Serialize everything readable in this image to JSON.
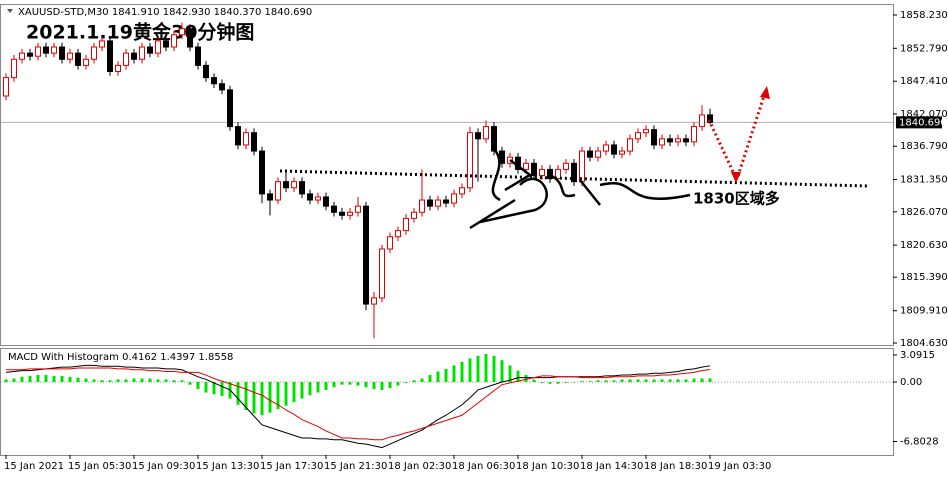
{
  "chart_data": [
    {
      "type": "candlestick",
      "header": "XAUUSD-STD,M30 1841.910 1842.930 1840.370 1840.690",
      "title": "2021.1.19黄金30分钟图",
      "annotation": "1830区域多",
      "bull_color": "#e00000",
      "bear_color": "#000000",
      "xticks": [
        {
          "value": 0,
          "label": "15 Jan 2021"
        },
        {
          "value": 8,
          "label": "15 Jan 05:30"
        },
        {
          "value": 16,
          "label": "15 Jan 09:30"
        },
        {
          "value": 24,
          "label": "15 Jan 13:30"
        },
        {
          "value": 32,
          "label": "15 Jan 17:30"
        },
        {
          "value": 40,
          "label": "15 Jan 21:30"
        },
        {
          "value": 48,
          "label": "18 Jan 02:30"
        },
        {
          "value": 56,
          "label": "18 Jan 06:30"
        },
        {
          "value": 64,
          "label": "18 Jan 10:30"
        },
        {
          "value": 72,
          "label": "18 Jan 14:30"
        },
        {
          "value": 80,
          "label": "18 Jan 18:30"
        },
        {
          "value": 88,
          "label": "19 Jan 03:30"
        }
      ],
      "ylim": [
        1804.31,
        1860.03
      ],
      "yticks": [
        {
          "value": 1858.23,
          "label": "1858.230"
        },
        {
          "value": 1852.79,
          "label": "1852.790"
        },
        {
          "value": 1847.41,
          "label": "1847.410"
        },
        {
          "value": 1842.07,
          "label": "1842.070"
        },
        {
          "value": 1836.79,
          "label": "1836.790"
        },
        {
          "value": 1831.35,
          "label": "1831.350"
        },
        {
          "value": 1826.07,
          "label": "1826.070"
        },
        {
          "value": 1820.63,
          "label": "1820.630"
        },
        {
          "value": 1815.39,
          "label": "1815.390"
        },
        {
          "value": 1809.91,
          "label": "1809.910"
        },
        {
          "value": 1804.63,
          "label": "1804.630"
        }
      ],
      "last_price": {
        "value": 1840.69,
        "label": "1840.690"
      },
      "open": [
        1845,
        1848,
        1851,
        1852,
        1851.5,
        1853,
        1852,
        1853,
        1851,
        1852,
        1850,
        1851,
        1853,
        1854,
        1849,
        1850,
        1852,
        1851,
        1853,
        1852,
        1854,
        1853,
        1855,
        1856,
        1853,
        1850,
        1848,
        1847,
        1846,
        1840,
        1837,
        1839,
        1836,
        1829,
        1828,
        1831,
        1830,
        1831,
        1829,
        1828,
        1828.5,
        1827,
        1826,
        1825.5,
        1826,
        1827,
        1811,
        1812,
        1820,
        1822,
        1823,
        1825,
        1826,
        1828,
        1827,
        1828,
        1827.5,
        1829,
        1830,
        1839,
        1838,
        1840,
        1836,
        1834,
        1835,
        1833,
        1834,
        1832,
        1833,
        1831.5,
        1833,
        1834,
        1831,
        1836,
        1835,
        1836,
        1837,
        1835.5,
        1836,
        1838,
        1839,
        1839.5,
        1837,
        1838,
        1837.5,
        1838,
        1837.5,
        1840,
        1841.91
      ],
      "high": [
        1848.7,
        1851.7,
        1852.7,
        1852.7,
        1853.7,
        1853.7,
        1853.7,
        1853.7,
        1852.7,
        1852.7,
        1851.7,
        1853.7,
        1854.7,
        1854.7,
        1850.7,
        1852.7,
        1852.7,
        1853.7,
        1853.7,
        1854.7,
        1854.7,
        1855.7,
        1857,
        1856.7,
        1853.7,
        1850.7,
        1848.7,
        1847.7,
        1846.7,
        1840.7,
        1839.7,
        1839.7,
        1836.7,
        1829.7,
        1831.7,
        1833,
        1831.7,
        1831.7,
        1829.7,
        1829.2,
        1829.2,
        1827.7,
        1826.7,
        1826.7,
        1828.5,
        1827.7,
        1813,
        1820.7,
        1822.7,
        1823.7,
        1825.7,
        1826.7,
        1833,
        1828.7,
        1828.7,
        1828.7,
        1829.7,
        1830.7,
        1840,
        1839.7,
        1841,
        1840.7,
        1836.7,
        1835.7,
        1835.7,
        1834.7,
        1834.7,
        1833.7,
        1833.7,
        1833.7,
        1834.7,
        1834.7,
        1836.7,
        1836.7,
        1836.7,
        1837.7,
        1837.7,
        1836.7,
        1838.7,
        1839.7,
        1840.2,
        1840.2,
        1838.7,
        1838.7,
        1838.7,
        1838.7,
        1840.7,
        1843.5,
        1842.93
      ],
      "low": [
        1844.3,
        1847.3,
        1850.3,
        1850.8,
        1850.8,
        1851.3,
        1851.3,
        1850.3,
        1850.3,
        1849.3,
        1849.3,
        1850.3,
        1852.3,
        1848.3,
        1848.3,
        1849.3,
        1850.3,
        1850.3,
        1851.3,
        1851.3,
        1852.3,
        1852.3,
        1854.3,
        1852.3,
        1849.3,
        1847.3,
        1846.3,
        1845.3,
        1839.3,
        1836.3,
        1836.3,
        1835.3,
        1827.5,
        1825.5,
        1827.3,
        1829.3,
        1829.3,
        1828.3,
        1827.3,
        1827.3,
        1826.3,
        1825.3,
        1824.8,
        1824.8,
        1825.3,
        1810,
        1805.4,
        1811.3,
        1819.3,
        1821.3,
        1822.3,
        1824.3,
        1825.3,
        1826.3,
        1826.3,
        1826.8,
        1826.8,
        1828.3,
        1829.3,
        1831,
        1837.3,
        1835.3,
        1833.3,
        1833.3,
        1832.3,
        1832.3,
        1831.3,
        1831.3,
        1830.8,
        1830.8,
        1832.3,
        1830.3,
        1830.3,
        1834.3,
        1834.3,
        1835.3,
        1834.8,
        1834.8,
        1835.3,
        1837.3,
        1838.3,
        1836.3,
        1836.3,
        1836.8,
        1836.8,
        1836.8,
        1836.8,
        1839.3,
        1840.37
      ],
      "close": [
        1848,
        1851,
        1852,
        1851.5,
        1853,
        1852,
        1853,
        1851,
        1852,
        1850,
        1851,
        1853,
        1854,
        1849,
        1850,
        1852,
        1851,
        1853,
        1852,
        1854,
        1853,
        1855,
        1856,
        1853,
        1850,
        1848,
        1847,
        1846,
        1840,
        1837,
        1839,
        1836,
        1829,
        1828,
        1831,
        1830,
        1831,
        1829,
        1828,
        1828.5,
        1827,
        1826,
        1825.5,
        1826,
        1827,
        1811,
        1812,
        1820,
        1822,
        1823,
        1825,
        1826,
        1828,
        1827,
        1828,
        1827.5,
        1829,
        1830,
        1839,
        1838,
        1840,
        1836,
        1834,
        1835,
        1833,
        1834,
        1832,
        1833,
        1831.5,
        1833,
        1834,
        1831,
        1836,
        1835,
        1836,
        1837,
        1835.5,
        1836,
        1838,
        1839,
        1839.5,
        1837,
        1838,
        1837.5,
        1838,
        1837.5,
        1840,
        1841.9,
        1840.69
      ]
    },
    {
      "type": "macd",
      "label": "MACD With Histogram 0.4162 1.4397 1.8558",
      "ylim": [
        -8.35,
        3.78
      ],
      "yticks": [
        3.0915,
        {
          "value": 0,
          "label": "0.00"
        },
        -6.8028
      ],
      "histogram": {
        "color": "#00e000",
        "values": [
          0.3,
          0.4,
          0.6,
          0.7,
          0.8,
          0.8,
          0.7,
          0.7,
          0.6,
          0.5,
          0.4,
          0.3,
          0.2,
          0.2,
          0.3,
          0.3,
          0.4,
          0.4,
          0.4,
          0.3,
          0.3,
          0.2,
          0.2,
          -0.3,
          -0.8,
          -1.2,
          -1.4,
          -1.6,
          -1.9,
          -2.6,
          -3.2,
          -3.6,
          -3.8,
          -3.5,
          -3.1,
          -2.7,
          -2.3,
          -1.9,
          -1.5,
          -1.2,
          -0.9,
          -0.6,
          -0.3,
          -0.3,
          -0.4,
          -0.6,
          -0.8,
          -0.9,
          -0.7,
          -0.4,
          -0.1,
          0.2,
          0.4,
          0.8,
          1.2,
          1.5,
          1.9,
          2.3,
          2.7,
          3.0,
          3.2,
          3.0,
          2.5,
          1.9,
          1.3,
          0.8,
          0.3,
          -0.1,
          -0.2,
          -0.2,
          -0.1,
          0.0,
          0.1,
          0.1,
          0.2,
          0.2,
          0.2,
          0.3,
          0.3,
          0.3,
          0.3,
          0.3,
          0.3,
          0.3,
          0.3,
          0.3,
          0.4,
          0.4,
          0.4162
        ]
      },
      "series": [
        {
          "color": "#000000",
          "values": [
            1.1,
            1.2,
            1.3,
            1.3,
            1.4,
            1.5,
            1.6,
            1.7,
            1.7,
            1.8,
            1.9,
            1.9,
            1.8,
            1.8,
            1.8,
            1.7,
            1.7,
            1.6,
            1.6,
            1.6,
            1.5,
            1.5,
            1.4,
            1.0,
            0.6,
            0.3,
            -0.1,
            -0.5,
            -0.9,
            -1.9,
            -2.9,
            -3.9,
            -4.9,
            -5.2,
            -5.5,
            -5.8,
            -6.1,
            -6.4,
            -6.4,
            -6.5,
            -6.5,
            -6.6,
            -6.6,
            -6.8,
            -7.0,
            -7.1,
            -7.3,
            -7.5,
            -7.1,
            -6.7,
            -6.3,
            -5.9,
            -5.5,
            -4.9,
            -4.3,
            -3.8,
            -3.2,
            -2.6,
            -1.8,
            -0.9,
            -0.6,
            -0.3,
            0.0,
            0.2,
            0.5,
            0.5,
            0.5,
            0.5,
            0.5,
            0.6,
            0.6,
            0.6,
            0.6,
            0.6,
            0.6,
            0.7,
            0.7,
            0.8,
            0.8,
            0.9,
            0.9,
            1.0,
            1.0,
            1.1,
            1.2,
            1.4,
            1.5,
            1.7,
            1.8558
          ]
        },
        {
          "color": "#e00000",
          "values": [
            1.4,
            1.4,
            1.4,
            1.5,
            1.5,
            1.5,
            1.5,
            1.5,
            1.5,
            1.6,
            1.6,
            1.6,
            1.6,
            1.6,
            1.5,
            1.5,
            1.4,
            1.4,
            1.3,
            1.3,
            1.2,
            1.2,
            1.1,
            1.1,
            1.1,
            0.8,
            0.4,
            0.1,
            -0.2,
            -0.5,
            -0.8,
            -1.2,
            -1.5,
            -2.1,
            -2.6,
            -3.2,
            -3.7,
            -4.3,
            -4.7,
            -5.1,
            -5.6,
            -6.0,
            -6.4,
            -6.4,
            -6.5,
            -6.5,
            -6.6,
            -6.6,
            -6.3,
            -6.1,
            -5.8,
            -5.6,
            -5.3,
            -5.0,
            -4.7,
            -4.4,
            -4.1,
            -3.8,
            -3.1,
            -2.4,
            -1.7,
            -1.0,
            -0.3,
            -0.1,
            0.1,
            0.3,
            0.5,
            0.7,
            0.7,
            0.6,
            0.6,
            0.6,
            0.5,
            0.5,
            0.5,
            0.5,
            0.6,
            0.6,
            0.6,
            0.7,
            0.7,
            0.7,
            0.8,
            0.8,
            0.9,
            1.0,
            1.1,
            1.3,
            1.4397
          ]
        }
      ]
    }
  ]
}
